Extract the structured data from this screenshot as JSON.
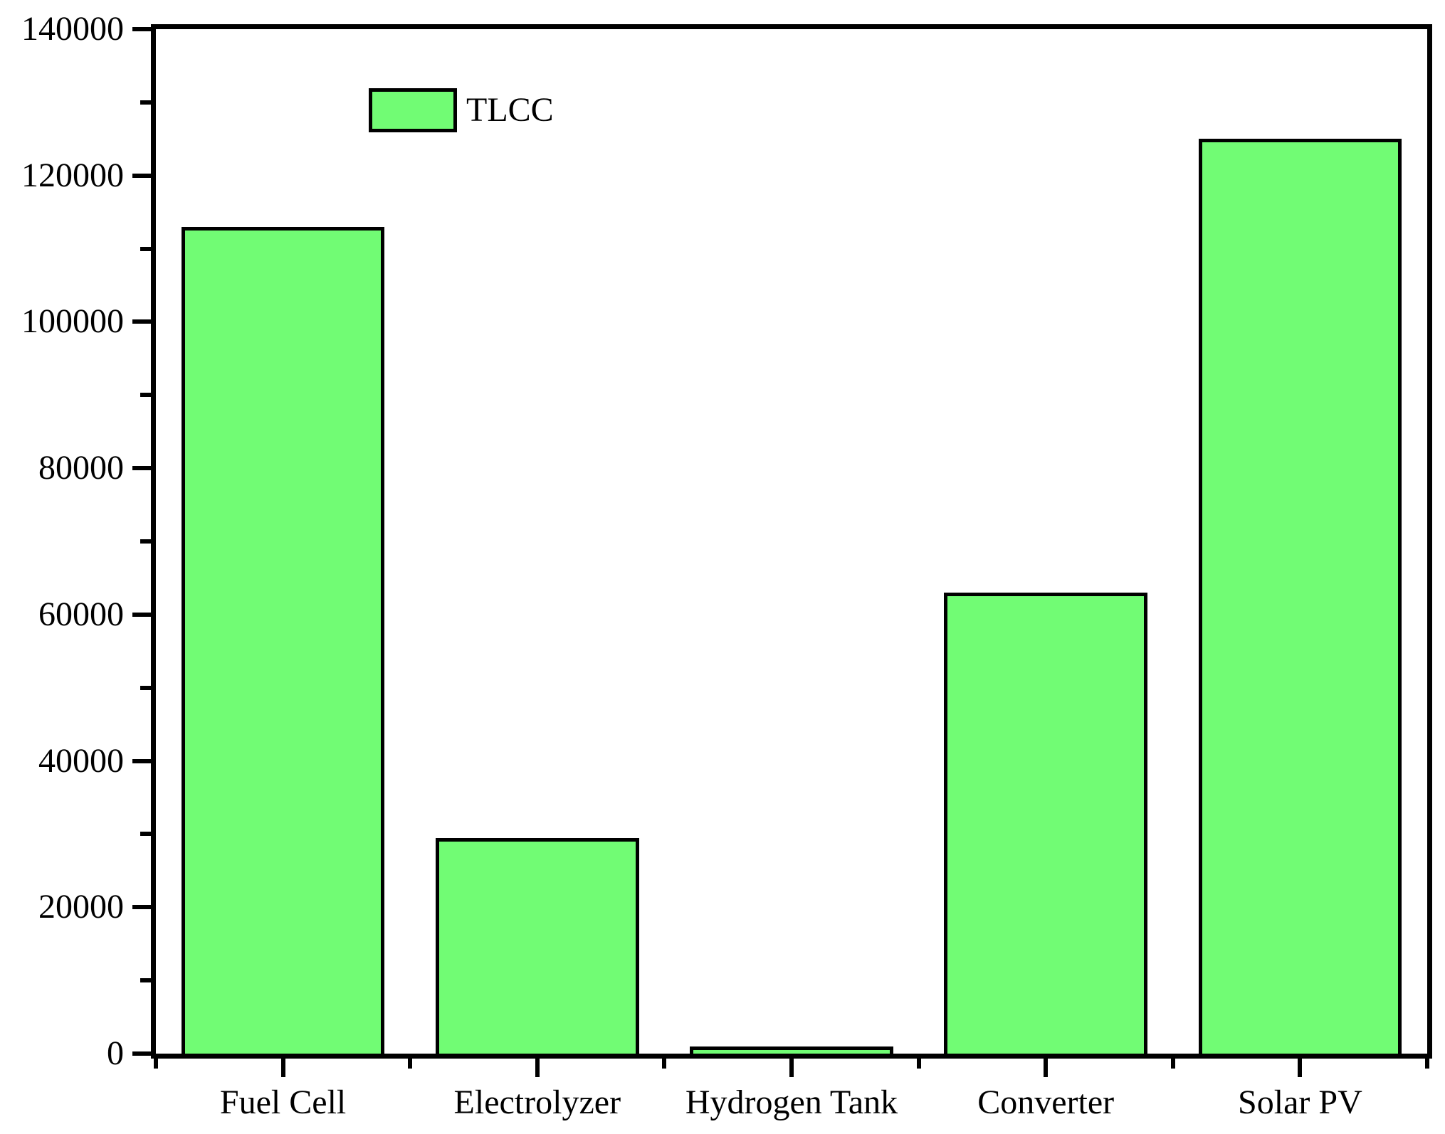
{
  "chart_data": {
    "type": "bar",
    "title": "",
    "xlabel": "",
    "ylabel": "",
    "categories": [
      "Fuel Cell",
      "Electrolyzer",
      "Hydrogen Tank",
      "Converter",
      "Solar PV"
    ],
    "series": [
      {
        "name": "TLCC",
        "values": [
          113000,
          29500,
          1000,
          63000,
          125000
        ]
      }
    ],
    "ylim": [
      0,
      140000
    ],
    "ytick_major_step": 20000,
    "ytick_minor_step": 10000,
    "ytick_labels": [
      "0",
      "20000",
      "40000",
      "60000",
      "80000",
      "100000",
      "120000",
      "140000"
    ],
    "grid": false,
    "legend": {
      "label": "TLCC",
      "position": "top-left"
    },
    "colors": {
      "bar_fill": "#71FC74",
      "bar_border": "#000000",
      "axis": "#000000",
      "text": "#000000",
      "background": "#FFFFFF"
    }
  }
}
